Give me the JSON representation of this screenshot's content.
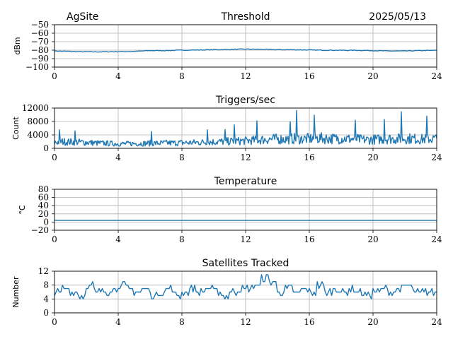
{
  "header": {
    "site": "AgSite",
    "date": "2025/05/13"
  },
  "colors": {
    "series": "#1f77b4"
  },
  "chart_data": [
    {
      "type": "line",
      "title": "Threshold",
      "xlabel": "",
      "ylabel": "dBm",
      "xlim": [
        0,
        24
      ],
      "ylim": [
        -100,
        -50
      ],
      "xticks": [
        0,
        4,
        8,
        12,
        16,
        20,
        24
      ],
      "yticks": [
        -100,
        -90,
        -80,
        -70,
        -60,
        -50
      ],
      "yticklabels": [
        "−100",
        "−90",
        "−80",
        "−70",
        "−60",
        "−50"
      ],
      "grid": true,
      "series": [
        {
          "x": [
            0,
            1,
            2,
            3,
            4,
            5,
            6,
            7,
            8,
            9,
            10,
            11,
            12,
            13,
            14,
            15,
            16,
            17,
            18,
            19,
            20,
            21,
            22,
            23,
            24
          ],
          "values": [
            -81,
            -81.5,
            -82,
            -82,
            -81.8,
            -81.5,
            -80.5,
            -80.5,
            -80,
            -79.8,
            -79.5,
            -79.2,
            -78.8,
            -79,
            -79.5,
            -79.5,
            -79.8,
            -80,
            -80.2,
            -80.2,
            -80.5,
            -81,
            -81,
            -80.5,
            -80.2
          ]
        }
      ]
    },
    {
      "type": "line",
      "title": "Triggers/sec",
      "xlabel": "",
      "ylabel": "Count",
      "xlim": [
        0,
        24
      ],
      "ylim": [
        0,
        12000
      ],
      "xticks": [
        0,
        4,
        8,
        12,
        16,
        20,
        24
      ],
      "yticks": [
        0,
        4000,
        8000,
        12000
      ],
      "yticklabels": [
        "0",
        "4000",
        "8000",
        "12000"
      ],
      "grid": true,
      "series": [
        {
          "x": [
            0,
            0.5,
            1,
            1.5,
            2,
            2.5,
            3,
            3.5,
            4,
            4.5,
            5,
            5.5,
            6,
            6.5,
            7,
            7.5,
            8,
            8.5,
            9,
            9.5,
            10,
            10.5,
            11,
            11.5,
            12,
            12.5,
            13,
            13.5,
            14,
            14.5,
            15,
            15.5,
            16,
            16.5,
            17,
            17.5,
            18,
            18.5,
            19,
            19.5,
            20,
            20.5,
            21,
            21.5,
            22,
            22.5,
            23,
            23.5,
            24
          ],
          "values": [
            2200,
            2500,
            2400,
            2300,
            2200,
            2000,
            1900,
            1800,
            1700,
            1700,
            1800,
            1800,
            1900,
            1900,
            2000,
            2000,
            2100,
            2100,
            2200,
            2300,
            2400,
            2500,
            2600,
            2700,
            2800,
            3000,
            3200,
            3400,
            3500,
            3400,
            3600,
            3500,
            3600,
            3800,
            3700,
            3600,
            3700,
            3500,
            3400,
            3200,
            3300,
            3400,
            3600,
            3500,
            3700,
            3600,
            3400,
            3500,
            3600
          ],
          "peaks": [
            {
              "x": 0.3,
              "y": 5500
            },
            {
              "x": 1.3,
              "y": 5200
            },
            {
              "x": 6.1,
              "y": 5000
            },
            {
              "x": 9.6,
              "y": 5500
            },
            {
              "x": 10.7,
              "y": 5600
            },
            {
              "x": 11.3,
              "y": 7000
            },
            {
              "x": 12.7,
              "y": 8200
            },
            {
              "x": 14.8,
              "y": 7900
            },
            {
              "x": 15.2,
              "y": 11300
            },
            {
              "x": 16.3,
              "y": 9900
            },
            {
              "x": 18.9,
              "y": 8400
            },
            {
              "x": 20.7,
              "y": 8600
            },
            {
              "x": 21.8,
              "y": 10900
            },
            {
              "x": 23.4,
              "y": 9600
            }
          ]
        }
      ]
    },
    {
      "type": "line",
      "title": "Temperature",
      "xlabel": "",
      "ylabel": "°C",
      "xlim": [
        0,
        24
      ],
      "ylim": [
        -20,
        80
      ],
      "xticks": [
        0,
        4,
        8,
        12,
        16,
        20,
        24
      ],
      "yticks": [
        -20,
        0,
        20,
        40,
        60,
        80
      ],
      "yticklabels": [
        "−20",
        "0",
        "20",
        "40",
        "60",
        "80"
      ],
      "grid": true,
      "series": [
        {
          "x": [
            0,
            24
          ],
          "values": [
            4,
            4
          ]
        }
      ]
    },
    {
      "type": "line",
      "title": "Satellites Tracked",
      "xlabel": "",
      "ylabel": "Number",
      "xlim": [
        0,
        24
      ],
      "ylim": [
        0,
        12
      ],
      "xticks": [
        0,
        4,
        8,
        12,
        16,
        20,
        24
      ],
      "yticks": [
        0,
        4,
        8,
        12
      ],
      "yticklabels": [
        "0",
        "4",
        "8",
        "12"
      ],
      "grid": true,
      "series": [
        {
          "x": [
            0,
            0.5,
            1,
            1.5,
            2,
            2.5,
            3,
            3.5,
            4,
            4.5,
            5,
            5.5,
            6,
            6.5,
            7,
            7.5,
            8,
            8.5,
            9,
            9.5,
            10,
            10.5,
            11,
            11.5,
            12,
            12.5,
            13,
            13.5,
            14,
            14.5,
            15,
            15.5,
            16,
            16.5,
            17,
            17.5,
            18,
            18.5,
            19,
            19.5,
            20,
            20.5,
            21,
            21.5,
            22,
            22.5,
            23,
            23.5,
            24
          ],
          "values": [
            6,
            7,
            6,
            5,
            8,
            6,
            6,
            7,
            8,
            7,
            6,
            7,
            5,
            6,
            7,
            5,
            6,
            7,
            6,
            7,
            6,
            5,
            6,
            7,
            7,
            8,
            10,
            9,
            6,
            7,
            6,
            7,
            6,
            8,
            6,
            7,
            6,
            7,
            6,
            5,
            6,
            7,
            6,
            7,
            8,
            6,
            6,
            6,
            6
          ]
        }
      ]
    }
  ]
}
